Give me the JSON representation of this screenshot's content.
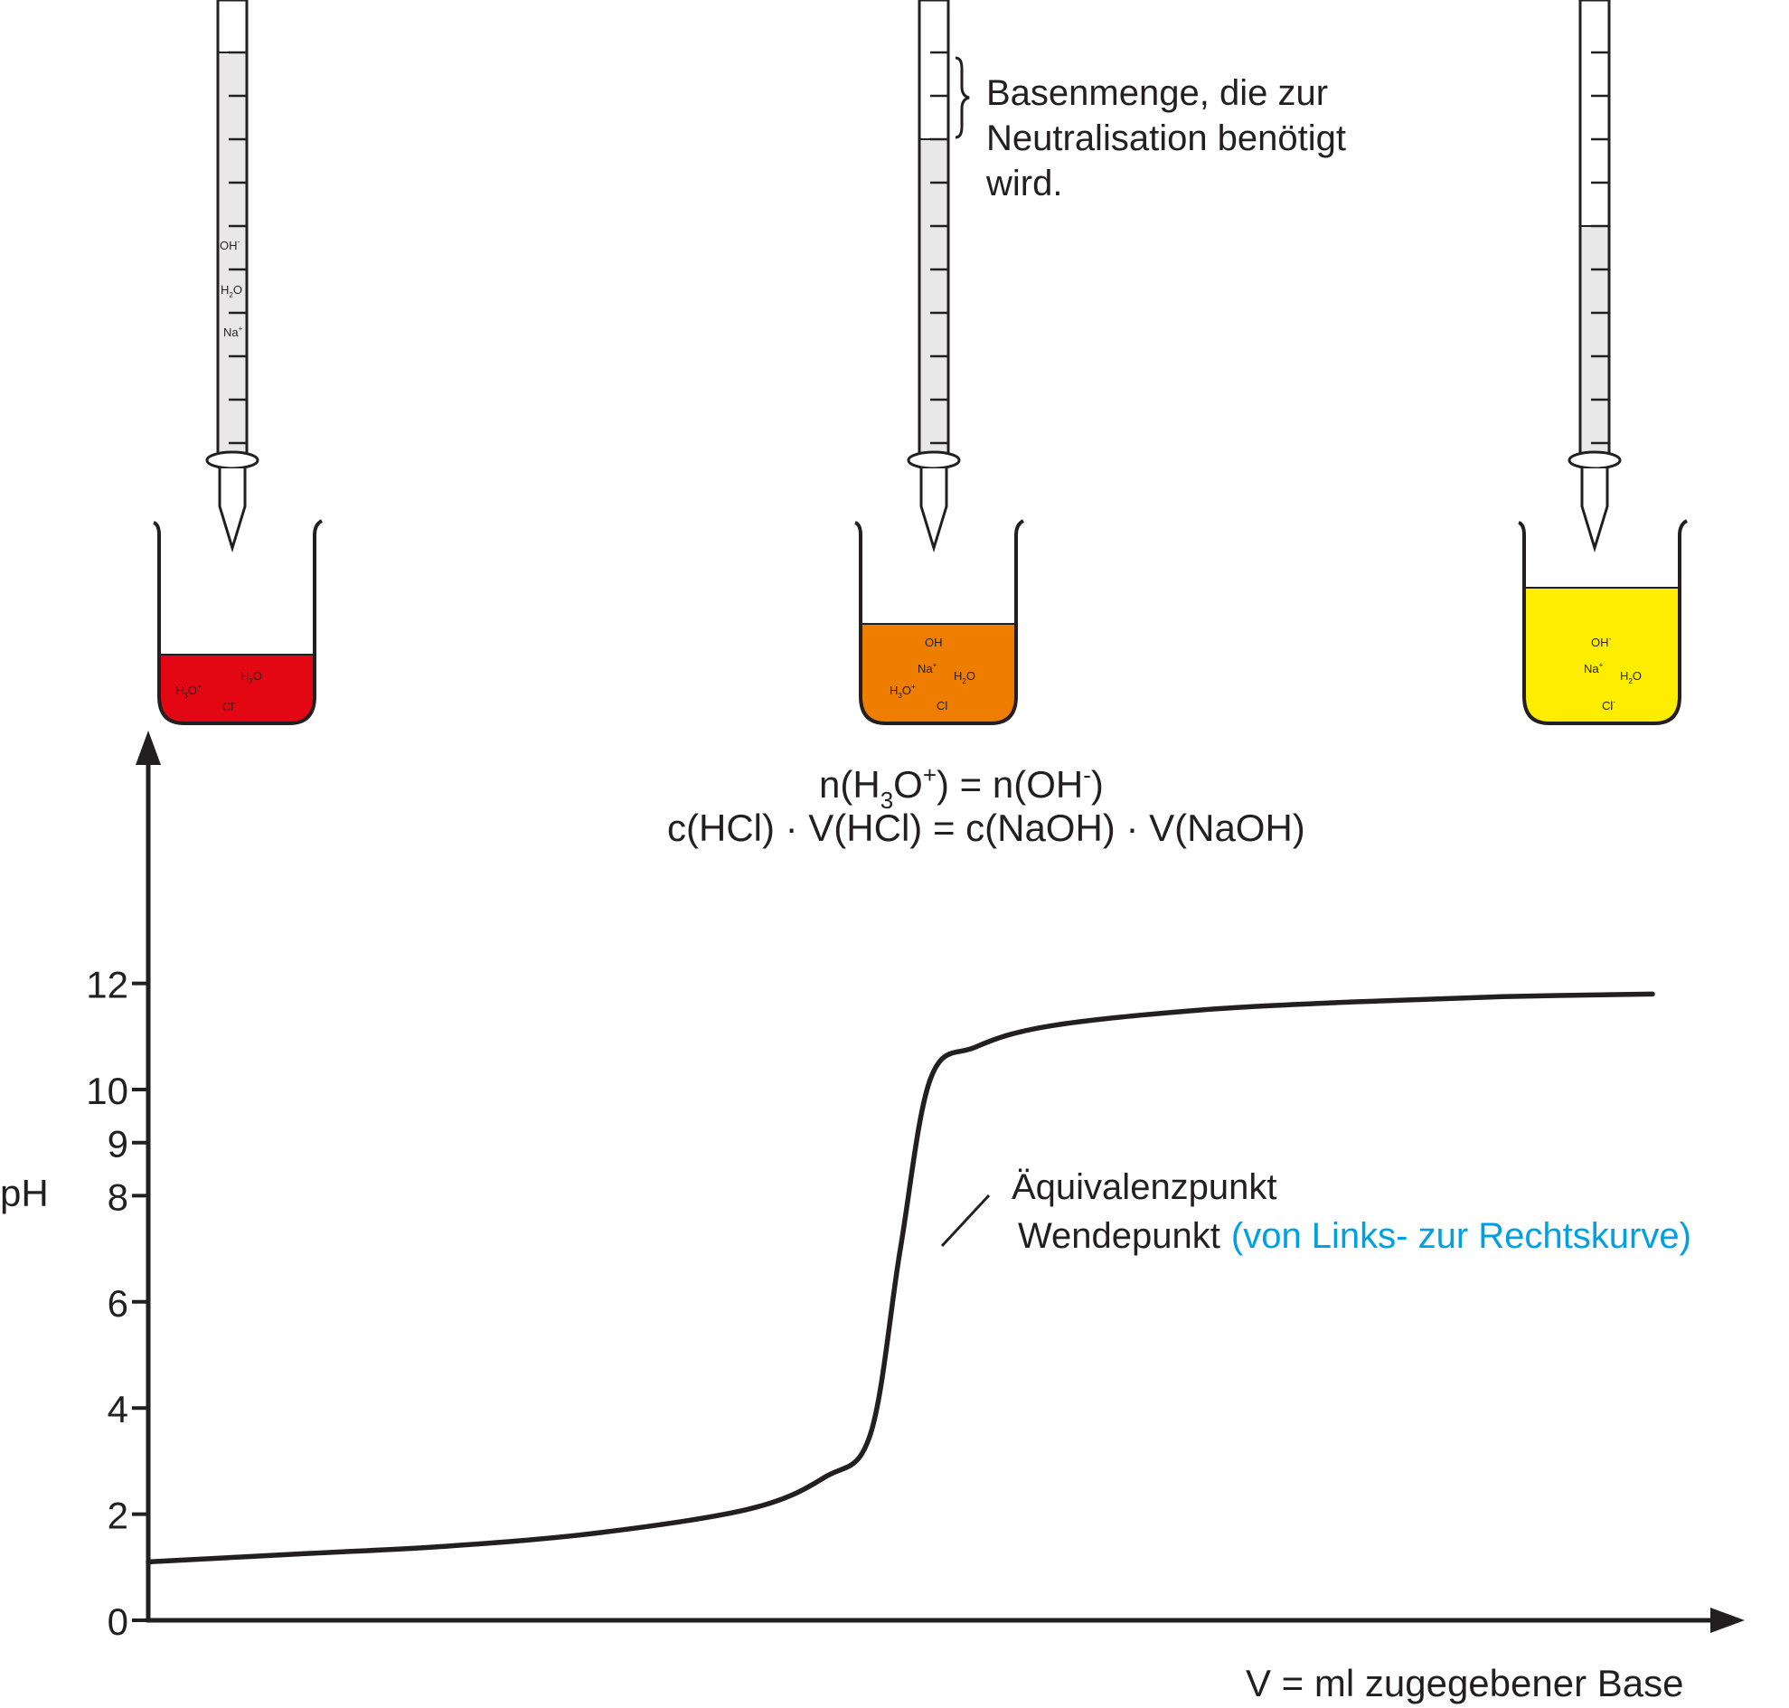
{
  "chart_data": {
    "type": "line",
    "ylabel": "pH",
    "xlabel": "V = ml zugegebener Base",
    "ylim": [
      0,
      14
    ],
    "yticks": [
      0,
      2,
      4,
      6,
      8,
      9,
      10,
      12
    ],
    "grid": false,
    "series": [
      {
        "x": [
          0,
          0.1,
          0.2,
          0.3,
          0.4,
          0.45,
          0.48,
          0.5,
          0.52,
          0.55,
          0.6,
          0.7,
          0.8,
          0.9,
          1.0
        ],
        "y": [
          1.1,
          1.25,
          1.4,
          1.65,
          2.1,
          2.7,
          3.5,
          7.0,
          10.2,
          10.8,
          11.2,
          11.5,
          11.65,
          11.75,
          11.8
        ]
      }
    ],
    "annotations": {
      "burette_note_line1": "Basenmenge, die zur",
      "burette_note_line2": "Neutralisation benötigt",
      "burette_note_line3": "wird.",
      "point_line1": "Äquivalenzpunkt",
      "point_line2": "Wendepunkt",
      "point_line2_colored": "(von Links- zur Rechtskurve)",
      "point_color": "#00a0e3"
    },
    "formulas": {
      "line1_n": "n(H",
      "line1_sub3": "3",
      "line1_O": "O",
      "line1_plus": "+",
      "line1_mid": ") = n(OH",
      "line1_minus": "-",
      "line1_end": ")",
      "line2": "c(HCl) · V(HCl) = c(NaOH) · V(NaOH)"
    },
    "beakers": [
      {
        "color": "#e30613",
        "ions": [
          "H3O+",
          "H2O",
          "Cl-"
        ],
        "burette_ions": [
          "OH-",
          "H2O",
          "Na+"
        ]
      },
      {
        "color": "#ef7d00",
        "ions": [
          "OH",
          "Na+",
          "H2O",
          "H3O+",
          "Cl"
        ]
      },
      {
        "color": "#ffed00",
        "ions": [
          "OH-",
          "Na+",
          "H2O",
          "Cl-"
        ]
      }
    ]
  },
  "labels": {
    "ion_OH": "OH",
    "ion_H": "H",
    "ion_O": "O",
    "ion_Na": "Na",
    "ion_Cl": "Cl",
    "sub2": "2",
    "sub3": "3",
    "sup_plus": "+",
    "sup_minus": "-"
  }
}
